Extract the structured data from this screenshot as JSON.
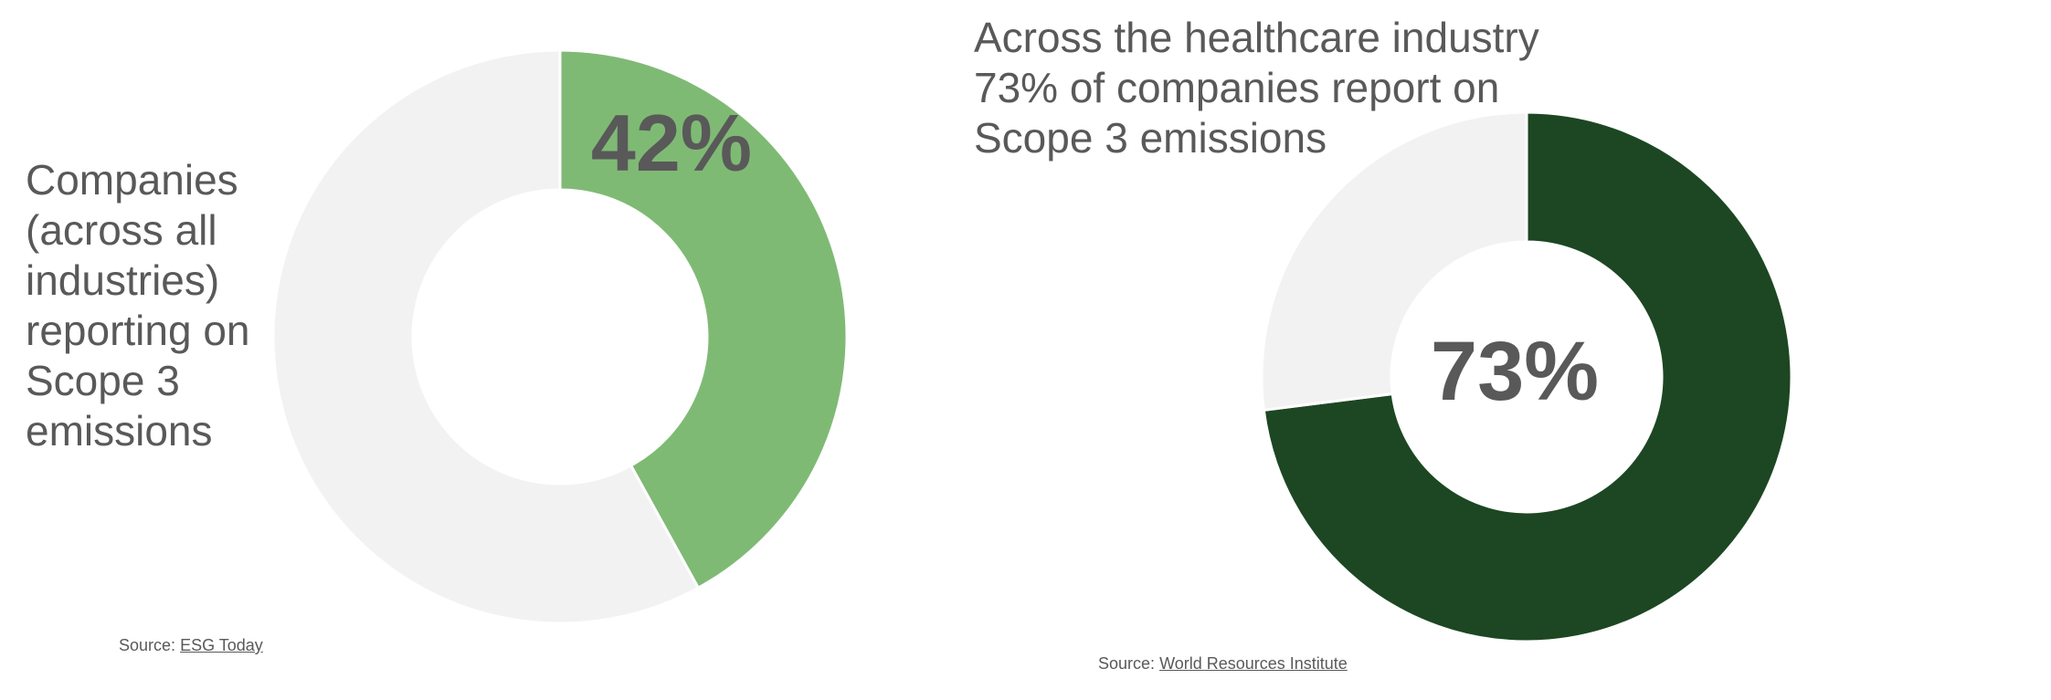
{
  "chart_data": [
    {
      "type": "pie",
      "title": "Companies (across all industries) reporting on Scope 3 emissions",
      "values": [
        42,
        58
      ],
      "center_label": "42%",
      "colors": [
        "#7fba75",
        "#f2f2f2"
      ],
      "source_prefix": "Source:",
      "source_link": "ESG Today"
    },
    {
      "type": "pie",
      "title": "Across the healthcare industry 73% of companies report on Scope 3 emissions",
      "values": [
        73,
        27
      ],
      "center_label": "73%",
      "colors": [
        "#1c4722",
        "#f2f2f2"
      ],
      "source_prefix": "Source:",
      "source_link": "World Resources Institute"
    }
  ]
}
